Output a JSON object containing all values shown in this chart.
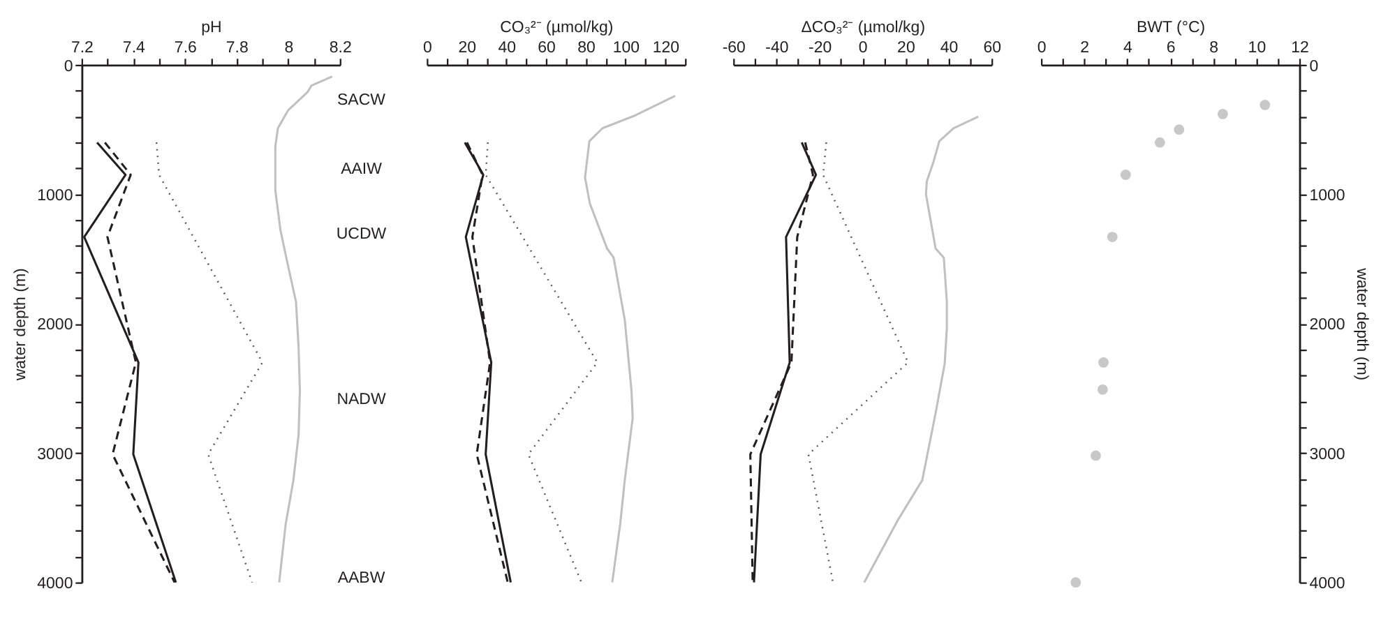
{
  "chart_data": [
    {
      "type": "line",
      "xlabel": "pH",
      "ylabel": "water depth (m)",
      "xlim": [
        7.2,
        8.2
      ],
      "xticks": [
        7.2,
        {
          "value": 7.3,
          "label": null
        },
        7.4,
        {
          "value": 7.5,
          "label": null
        },
        7.6,
        {
          "value": 7.7,
          "label": null
        },
        7.8,
        {
          "value": 7.9,
          "label": null
        },
        8,
        {
          "value": 8.1,
          "label": null
        },
        8.2
      ],
      "ylim": [
        4000,
        0
      ],
      "yticks": [
        0,
        {
          "value": 200,
          "label": null
        },
        {
          "value": 400,
          "label": null
        },
        {
          "value": 600,
          "label": null
        },
        {
          "value": 800,
          "label": null
        },
        1000,
        {
          "value": 1200,
          "label": null
        },
        {
          "value": 1400,
          "label": null
        },
        {
          "value": 1600,
          "label": null
        },
        {
          "value": 1800,
          "label": null
        },
        2000,
        {
          "value": 2200,
          "label": null
        },
        {
          "value": 2400,
          "label": null
        },
        {
          "value": 2600,
          "label": null
        },
        {
          "value": 2800,
          "label": null
        },
        3000,
        {
          "value": 3200,
          "label": null
        },
        {
          "value": 3400,
          "label": null
        },
        {
          "value": 3600,
          "label": null
        },
        {
          "value": 3800,
          "label": null
        },
        4000
      ],
      "grid": false,
      "series": [
        {
          "color": "#c0c0c0",
          "line_style": "solid",
          "x": [
            8.17,
            8.09,
            8.075,
            8.0,
            7.96,
            7.95,
            7.95,
            7.95,
            7.97,
            8.0,
            8.03,
            8.04,
            8.045,
            8.04,
            8.02,
            7.99,
            7.965
          ],
          "values": [
            90,
            160,
            210,
            350,
            490,
            630,
            870,
            970,
            1280,
            1560,
            1830,
            2180,
            2520,
            2860,
            3210,
            3550,
            4000
          ]
        },
        {
          "color": "#555555",
          "line_style": "dotted",
          "x": [
            7.49,
            7.5,
            7.9,
            7.69,
            7.86
          ],
          "values": [
            600,
            850,
            2300,
            3010,
            4000
          ]
        },
        {
          "color": "#231f20",
          "line_style": "dashed",
          "x": [
            7.29,
            7.39,
            7.3,
            7.41,
            7.32,
            7.56
          ],
          "values": [
            600,
            850,
            1330,
            2300,
            3010,
            4000
          ]
        },
        {
          "color": "#231f20",
          "line_style": "solid",
          "x": [
            7.26,
            7.37,
            7.21,
            7.42,
            7.4,
            7.565
          ],
          "values": [
            600,
            850,
            1330,
            2300,
            3010,
            4000
          ]
        }
      ],
      "annotations": [
        "SACW",
        "AAIW",
        "UCDW",
        "NADW",
        "AABW"
      ]
    },
    {
      "type": "line",
      "xlabel": "CO₃²⁻ (µmol/kg)",
      "xlim": [
        0,
        130
      ],
      "xticks": [
        0,
        {
          "value": 10,
          "label": null
        },
        20,
        {
          "value": 30,
          "label": null
        },
        40,
        {
          "value": 50,
          "label": null
        },
        60,
        {
          "value": 70,
          "label": null
        },
        80,
        {
          "value": 90,
          "label": null
        },
        100,
        {
          "value": 110,
          "label": null
        },
        120,
        {
          "value": 130,
          "label": null
        }
      ],
      "ylim": [
        4000,
        0
      ],
      "tick_labels": "x",
      "grid": false,
      "series": [
        {
          "color": "#c0c0c0",
          "line_style": "solid",
          "x": [
            125,
            105,
            88.4,
            81.8,
            80.7,
            79.6,
            82,
            90.7,
            94,
            99.6,
            103,
            103.6,
            99.6,
            97.3,
            93.3
          ],
          "values": [
            240,
            390,
            490,
            590,
            730,
            870,
            1070,
            1420,
            1490,
            1970,
            2520,
            2730,
            3210,
            3550,
            4000
          ]
        },
        {
          "color": "#555555",
          "line_style": "dotted",
          "x": [
            30.7,
            29.6,
            85.8,
            51.1,
            77.8
          ],
          "values": [
            600,
            850,
            2300,
            3010,
            4000
          ]
        },
        {
          "color": "#231f20",
          "line_style": "dashed",
          "x": [
            20.2,
            28,
            22.9,
            31.8,
            25.1,
            40.7
          ],
          "values": [
            600,
            850,
            1330,
            2300,
            3010,
            4000
          ]
        },
        {
          "color": "#231f20",
          "line_style": "solid",
          "x": [
            19.1,
            28.4,
            19.6,
            32.4,
            29.6,
            42.2
          ],
          "values": [
            600,
            850,
            1330,
            2300,
            3010,
            4000
          ]
        }
      ]
    },
    {
      "type": "line",
      "xlabel": "ΔCO₃²⁻ (µmol/kg)",
      "xlim": [
        -60,
        60
      ],
      "xticks": [
        -60,
        {
          "value": -50,
          "label": null
        },
        -40,
        {
          "value": -30,
          "label": null
        },
        -20,
        {
          "value": -10,
          "label": null
        },
        0,
        {
          "value": 10,
          "label": null
        },
        20,
        {
          "value": 30,
          "label": null
        },
        40,
        {
          "value": 50,
          "label": null
        },
        60
      ],
      "ylim": [
        4000,
        0
      ],
      "tick_labels": "x",
      "grid": false,
      "series": [
        {
          "color": "#c0c0c0",
          "line_style": "solid",
          "x": [
            53.8,
            42.3,
            35.7,
            33,
            29.9,
            29.5,
            34,
            37.8,
            39.2,
            39.2,
            38.2,
            34,
            27.8,
            16.4,
            0.8
          ],
          "values": [
            400,
            490,
            590,
            750,
            900,
            1000,
            1420,
            1490,
            1830,
            2040,
            2310,
            2690,
            3210,
            3520,
            4000
          ]
        },
        {
          "color": "#555555",
          "line_style": "dotted",
          "x": [
            -16.8,
            -18.3,
            21.2,
            -25.1,
            -13.7
          ],
          "values": [
            600,
            850,
            2300,
            3010,
            4000
          ]
        },
        {
          "color": "#231f20",
          "line_style": "dashed",
          "x": [
            -26.6,
            -23,
            -30.3,
            -33,
            -52.1,
            -51
          ],
          "values": [
            600,
            850,
            1330,
            2300,
            3010,
            4000
          ]
        },
        {
          "color": "#231f20",
          "line_style": "solid",
          "x": [
            -28.2,
            -21.6,
            -35.5,
            -33.8,
            -47.3,
            -50.4
          ],
          "values": [
            600,
            850,
            1330,
            2300,
            3010,
            4000
          ]
        }
      ]
    },
    {
      "type": "scatter",
      "xlabel": "BWT (°C)",
      "y2label": "water depth (m)",
      "xlim": [
        0,
        12
      ],
      "xticks": [
        0,
        {
          "value": 1,
          "label": null
        },
        2,
        {
          "value": 3,
          "label": null
        },
        4,
        {
          "value": 5,
          "label": null
        },
        6,
        {
          "value": 7,
          "label": null
        },
        8,
        {
          "value": 9,
          "label": null
        },
        10,
        {
          "value": 11,
          "label": null
        },
        12
      ],
      "y2lim": [
        4000,
        0
      ],
      "y2ticks": [
        0,
        {
          "value": 200,
          "label": null
        },
        {
          "value": 400,
          "label": null
        },
        {
          "value": 600,
          "label": null
        },
        {
          "value": 800,
          "label": null
        },
        1000,
        {
          "value": 1200,
          "label": null
        },
        {
          "value": 1400,
          "label": null
        },
        {
          "value": 1600,
          "label": null
        },
        {
          "value": 1800,
          "label": null
        },
        2000,
        {
          "value": 2200,
          "label": null
        },
        {
          "value": 2400,
          "label": null
        },
        {
          "value": 2600,
          "label": null
        },
        {
          "value": 2800,
          "label": null
        },
        3000,
        {
          "value": 3200,
          "label": null
        },
        {
          "value": 3400,
          "label": null
        },
        {
          "value": 3600,
          "label": null
        },
        {
          "value": 3800,
          "label": null
        },
        4000
      ],
      "grid": false,
      "marker": "circle",
      "series": [
        {
          "color": "#c8c8c8",
          "axis": "y2",
          "x": [
            10.4,
            8.44,
            6.41,
            5.52,
            3.93,
            3.31,
            2.9,
            2.86,
            2.54,
            1.61
          ],
          "values": [
            310,
            380,
            500,
            600,
            850,
            1330,
            2300,
            2510,
            3020,
            4000
          ]
        }
      ]
    }
  ]
}
